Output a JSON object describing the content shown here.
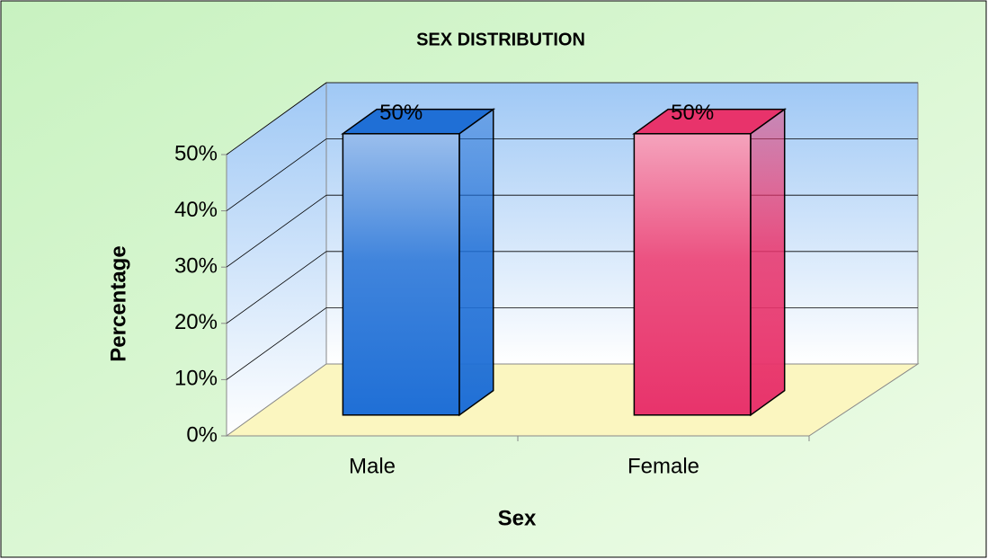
{
  "chart_data": {
    "type": "bar3d",
    "title": "SEX DISTRIBUTION",
    "x_label": "Sex",
    "y_label": "Percentage",
    "categories": [
      "Male",
      "Female"
    ],
    "values": [
      50,
      50
    ],
    "value_labels": [
      "50%",
      "50%"
    ],
    "colors": [
      "#1f6fd6",
      "#e8336b"
    ],
    "ylim": [
      0,
      50
    ],
    "yticks": [
      {
        "value": 0,
        "label": "0%"
      },
      {
        "value": 10,
        "label": "10%"
      },
      {
        "value": 20,
        "label": "20%"
      },
      {
        "value": 30,
        "label": "30%"
      },
      {
        "value": 40,
        "label": "40%"
      },
      {
        "value": 50,
        "label": "50%"
      }
    ],
    "grid": true
  }
}
